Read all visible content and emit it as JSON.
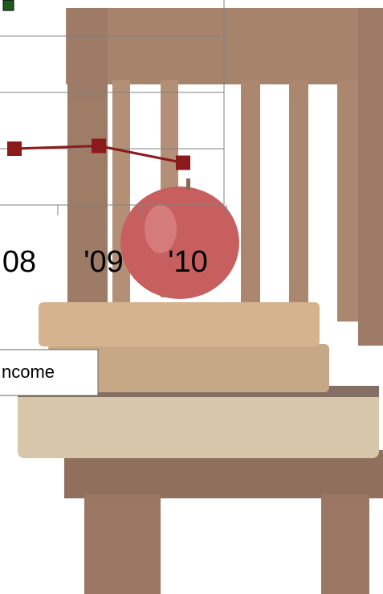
{
  "chart_data": {
    "type": "line",
    "categories": [
      "08",
      "'09",
      "'10"
    ],
    "series": [
      {
        "name": "ncome",
        "color": "#8b1a1a",
        "values": [
          1.0,
          1.05,
          0.75
        ]
      }
    ],
    "ylim": [
      0,
      4
    ],
    "yticks": [
      1,
      2,
      3
    ],
    "grid": true
  }
}
